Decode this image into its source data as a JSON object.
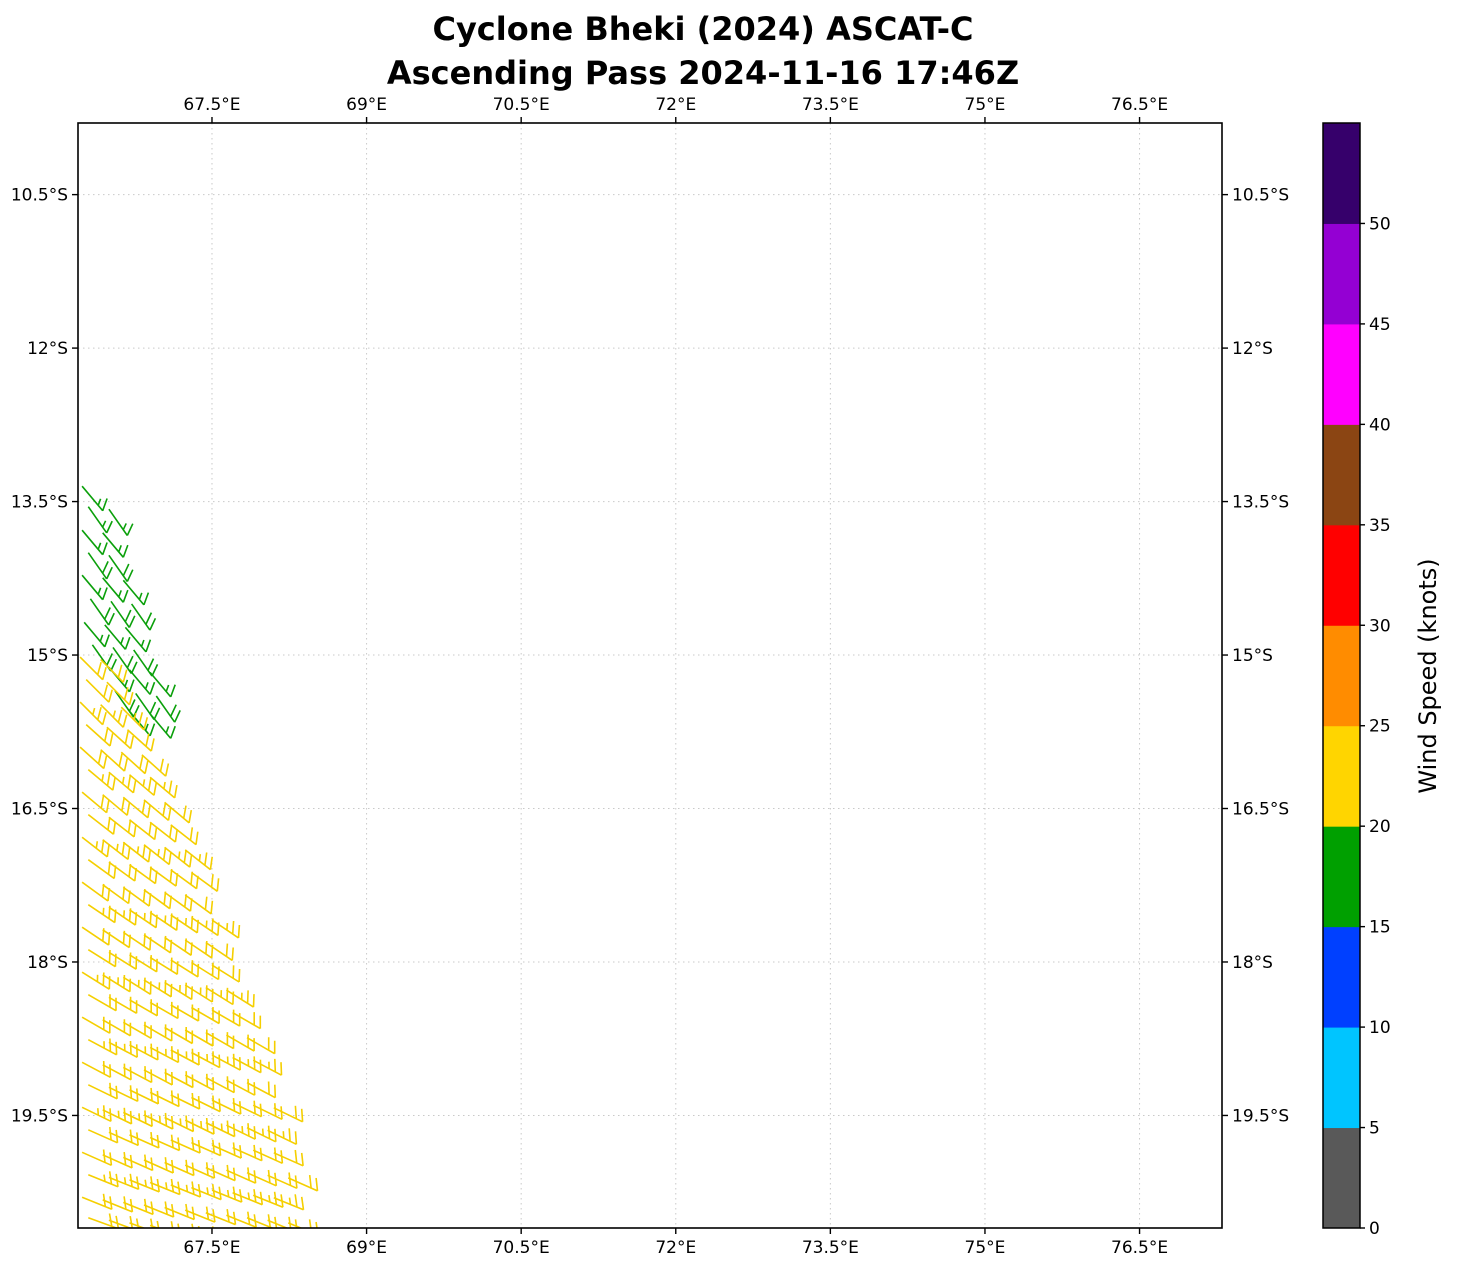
{
  "title": {
    "line1": "Cyclone Bheki (2024) ASCAT-C",
    "line2": "Ascending Pass 2024-11-16 17:46Z"
  },
  "colorbar": {
    "label": "Wind Speed (knots)",
    "tick_values": [
      0,
      5,
      10,
      15,
      20,
      25,
      30,
      35,
      40,
      45,
      50
    ],
    "segment_colors": [
      "#595959",
      "#00c5ff",
      "#0040ff",
      "#00a000",
      "#ffd500",
      "#ff8c00",
      "#ff0000",
      "#8b4513",
      "#ff00ff",
      "#9400d3",
      "#36006b"
    ],
    "extend_top": true
  },
  "chart_data": {
    "type": "wind_barbs",
    "title": "Cyclone Bheki (2024) ASCAT-C\nAscending Pass 2024-11-16 17:46Z",
    "grid": "dotted",
    "x_axis": {
      "range": [
        66.2,
        77.3
      ],
      "tick_values": [
        67.5,
        69,
        70.5,
        72,
        73.5,
        75,
        76.5
      ],
      "tick_labels": [
        "67.5°E",
        "69°E",
        "70.5°E",
        "72°E",
        "73.5°E",
        "75°E",
        "76.5°E"
      ]
    },
    "y_axis": {
      "range": [
        9.8,
        20.6
      ],
      "tick_values": [
        10.5,
        12,
        13.5,
        15,
        16.5,
        18,
        19.5
      ],
      "tick_labels": [
        "10.5°S",
        "12°S",
        "13.5°S",
        "15°S",
        "16.5°S",
        "18°S",
        "19.5°S"
      ]
    },
    "palette": {
      "green": "#0ba00b",
      "gold": "#f5cf00"
    },
    "speed_bands_knots": {
      "green": "15-20",
      "gold": "20-25"
    },
    "barbs": {
      "step_lon": 0.2,
      "row_tilt_deg_per_step": 0.025,
      "rows": [
        {
          "lat": 13.35,
          "lon0": 66.24,
          "n": 1,
          "spd": 15,
          "dir": 140,
          "col": "green"
        },
        {
          "lat": 13.55,
          "lon0": 66.3,
          "n": 2,
          "spd": 15,
          "dir": 145,
          "col": "green"
        },
        {
          "lat": 13.78,
          "lon0": 66.24,
          "n": 2,
          "spd": 15,
          "dir": 140,
          "col": "green"
        },
        {
          "lat": 14.0,
          "lon0": 66.3,
          "n": 2,
          "spd": 20,
          "dir": 145,
          "col": "green"
        },
        {
          "lat": 14.22,
          "lon0": 66.24,
          "n": 3,
          "spd": 15,
          "dir": 140,
          "col": "green"
        },
        {
          "lat": 14.45,
          "lon0": 66.32,
          "n": 3,
          "spd": 20,
          "dir": 145,
          "col": "green"
        },
        {
          "lat": 14.68,
          "lon0": 66.26,
          "n": 3,
          "spd": 15,
          "dir": 140,
          "col": "green"
        },
        {
          "lat": 14.9,
          "lon0": 66.34,
          "n": 3,
          "spd": 20,
          "dir": 145,
          "col": "green"
        },
        {
          "lat": 15.12,
          "lon0": 66.5,
          "n": 3,
          "spd": 15,
          "dir": 140,
          "col": "green"
        },
        {
          "lat": 15.35,
          "lon0": 66.56,
          "n": 3,
          "spd": 20,
          "dir": 145,
          "col": "green"
        },
        {
          "lat": 15.55,
          "lon0": 66.7,
          "n": 2,
          "spd": 15,
          "dir": 140,
          "col": "green"
        },
        {
          "lat": 15.02,
          "lon0": 66.22,
          "n": 2,
          "spd": 20,
          "dir": 135,
          "col": "gold"
        },
        {
          "lat": 15.24,
          "lon0": 66.28,
          "n": 2,
          "spd": 20,
          "dir": 135,
          "col": "gold"
        },
        {
          "lat": 15.46,
          "lon0": 66.22,
          "n": 3,
          "spd": 25,
          "dir": 135,
          "col": "gold"
        },
        {
          "lat": 15.68,
          "lon0": 66.28,
          "n": 3,
          "spd": 20,
          "dir": 132,
          "col": "gold"
        },
        {
          "lat": 15.9,
          "lon0": 66.22,
          "n": 4,
          "spd": 20,
          "dir": 132,
          "col": "gold"
        },
        {
          "lat": 16.12,
          "lon0": 66.3,
          "n": 4,
          "spd": 25,
          "dir": 130,
          "col": "gold"
        },
        {
          "lat": 16.34,
          "lon0": 66.24,
          "n": 5,
          "spd": 20,
          "dir": 130,
          "col": "gold"
        },
        {
          "lat": 16.56,
          "lon0": 66.3,
          "n": 5,
          "spd": 20,
          "dir": 128,
          "col": "gold"
        },
        {
          "lat": 16.78,
          "lon0": 66.24,
          "n": 6,
          "spd": 25,
          "dir": 128,
          "col": "gold"
        },
        {
          "lat": 17.0,
          "lon0": 66.3,
          "n": 6,
          "spd": 20,
          "dir": 126,
          "col": "gold"
        },
        {
          "lat": 17.22,
          "lon0": 66.24,
          "n": 6,
          "spd": 20,
          "dir": 126,
          "col": "gold"
        },
        {
          "lat": 17.44,
          "lon0": 66.3,
          "n": 7,
          "spd": 25,
          "dir": 124,
          "col": "gold"
        },
        {
          "lat": 17.66,
          "lon0": 66.24,
          "n": 7,
          "spd": 20,
          "dir": 124,
          "col": "gold"
        },
        {
          "lat": 17.88,
          "lon0": 66.3,
          "n": 7,
          "spd": 20,
          "dir": 122,
          "col": "gold"
        },
        {
          "lat": 18.1,
          "lon0": 66.24,
          "n": 8,
          "spd": 25,
          "dir": 122,
          "col": "gold"
        },
        {
          "lat": 18.32,
          "lon0": 66.3,
          "n": 8,
          "spd": 20,
          "dir": 120,
          "col": "gold"
        },
        {
          "lat": 18.54,
          "lon0": 66.24,
          "n": 9,
          "spd": 20,
          "dir": 120,
          "col": "gold"
        },
        {
          "lat": 18.76,
          "lon0": 66.3,
          "n": 9,
          "spd": 25,
          "dir": 118,
          "col": "gold"
        },
        {
          "lat": 18.98,
          "lon0": 66.24,
          "n": 9,
          "spd": 20,
          "dir": 118,
          "col": "gold"
        },
        {
          "lat": 19.2,
          "lon0": 66.3,
          "n": 10,
          "spd": 20,
          "dir": 116,
          "col": "gold"
        },
        {
          "lat": 19.42,
          "lon0": 66.24,
          "n": 10,
          "spd": 25,
          "dir": 116,
          "col": "gold"
        },
        {
          "lat": 19.64,
          "lon0": 66.3,
          "n": 10,
          "spd": 20,
          "dir": 114,
          "col": "gold"
        },
        {
          "lat": 19.86,
          "lon0": 66.24,
          "n": 11,
          "spd": 20,
          "dir": 114,
          "col": "gold"
        },
        {
          "lat": 20.08,
          "lon0": 66.3,
          "n": 10,
          "spd": 25,
          "dir": 112,
          "col": "gold"
        },
        {
          "lat": 20.3,
          "lon0": 66.24,
          "n": 11,
          "spd": 20,
          "dir": 112,
          "col": "gold"
        },
        {
          "lat": 20.5,
          "lon0": 66.3,
          "n": 11,
          "spd": 20,
          "dir": 110,
          "col": "gold"
        }
      ]
    }
  }
}
